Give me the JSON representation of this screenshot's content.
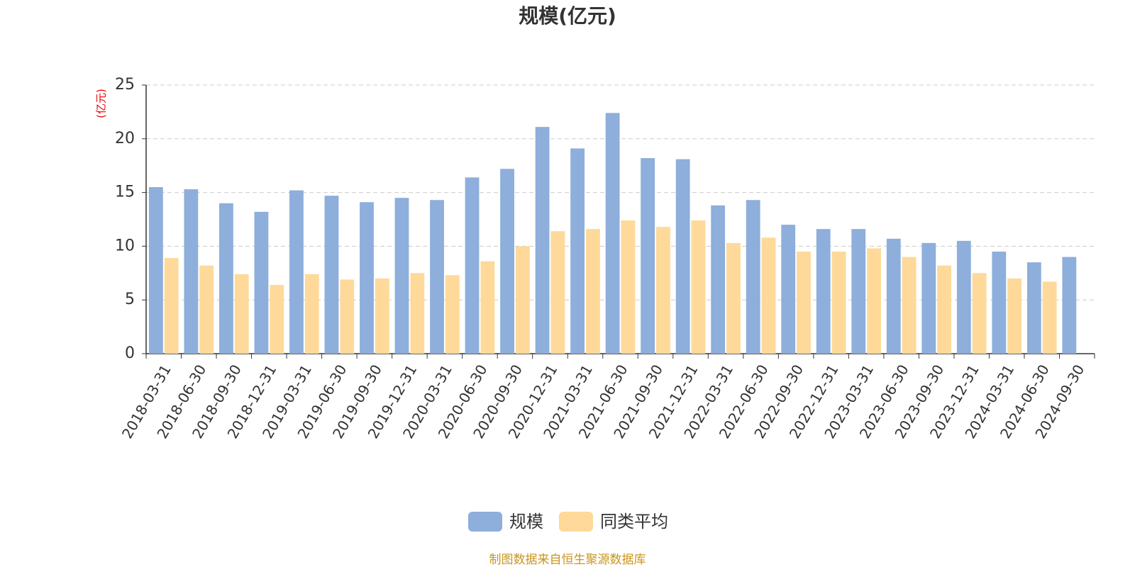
{
  "chart_data": {
    "type": "bar",
    "title": "规模(亿元)",
    "y_unit": "(亿元)",
    "source": "制图数据来自恒生聚源数据库",
    "categories": [
      "2018-03-31",
      "2018-06-30",
      "2018-09-30",
      "2018-12-31",
      "2019-03-31",
      "2019-06-30",
      "2019-09-30",
      "2019-12-31",
      "2020-03-31",
      "2020-06-30",
      "2020-09-30",
      "2020-12-31",
      "2021-03-31",
      "2021-06-30",
      "2021-09-30",
      "2021-12-31",
      "2022-03-31",
      "2022-06-30",
      "2022-09-30",
      "2022-12-31",
      "2023-03-31",
      "2023-06-30",
      "2023-09-30",
      "2023-12-31",
      "2024-03-31",
      "2024-06-30",
      "2024-09-30"
    ],
    "series": [
      {
        "name": "规模",
        "color": "#8eaedb",
        "values": [
          15.5,
          15.3,
          14.0,
          13.2,
          15.2,
          14.7,
          14.1,
          14.5,
          14.3,
          16.4,
          17.2,
          21.1,
          19.1,
          22.4,
          18.2,
          18.1,
          13.8,
          14.3,
          12.0,
          11.6,
          11.6,
          10.7,
          10.3,
          10.5,
          9.5,
          8.5,
          9.0
        ]
      },
      {
        "name": "同类平均",
        "color": "#fed999",
        "values": [
          8.9,
          8.2,
          7.4,
          6.4,
          7.4,
          6.9,
          7.0,
          7.5,
          7.3,
          8.6,
          10.0,
          11.4,
          11.6,
          12.4,
          11.8,
          12.4,
          10.3,
          10.8,
          9.5,
          9.5,
          9.8,
          9.0,
          8.2,
          7.5,
          7.0,
          6.7,
          null
        ]
      }
    ],
    "ylim": [
      0,
      25
    ],
    "yticks": [
      0,
      5,
      10,
      15,
      20,
      25
    ],
    "grid": true,
    "legend": "bottom"
  }
}
